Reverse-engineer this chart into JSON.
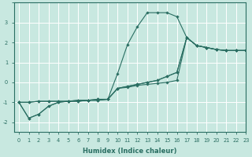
{
  "xlabel": "Humidex (Indice chaleur)",
  "ylabel": "",
  "bg_color": "#c8e8e0",
  "line_color": "#2a6e62",
  "grid_color": "#ffffff",
  "xlim": [
    -0.5,
    23
  ],
  "ylim": [
    -2.5,
    4.0
  ],
  "yticks": [
    -2,
    -1,
    0,
    1,
    2,
    3
  ],
  "xticks": [
    0,
    1,
    2,
    3,
    4,
    5,
    6,
    7,
    8,
    9,
    10,
    11,
    12,
    13,
    14,
    15,
    16,
    17,
    18,
    19,
    20,
    21,
    22,
    23
  ],
  "line1_x": [
    0,
    1,
    2,
    3,
    4,
    5,
    6,
    7,
    8,
    9,
    10,
    11,
    12,
    13,
    14,
    15,
    16,
    17,
    18,
    19,
    20,
    21,
    22,
    23
  ],
  "line1_y": [
    -1.0,
    -1.8,
    -1.6,
    -1.2,
    -1.0,
    -0.95,
    -0.95,
    -0.9,
    -0.9,
    -0.85,
    0.45,
    1.9,
    2.8,
    3.5,
    3.5,
    3.5,
    3.3,
    2.25,
    1.85,
    1.75,
    1.65,
    1.6,
    1.6,
    1.6
  ],
  "line2_x": [
    0,
    1,
    2,
    3,
    4,
    5,
    6,
    7,
    8,
    9,
    10,
    11,
    12,
    13,
    14,
    15,
    16,
    17,
    18,
    19,
    20,
    21,
    22,
    23
  ],
  "line2_y": [
    -1.0,
    -1.8,
    -1.6,
    -1.2,
    -1.0,
    -0.95,
    -0.95,
    -0.9,
    -0.9,
    -0.85,
    -0.3,
    -0.25,
    -0.15,
    -0.1,
    -0.05,
    0.0,
    0.1,
    2.25,
    1.85,
    1.75,
    1.65,
    1.6,
    1.6,
    1.6
  ],
  "line3_x": [
    0,
    1,
    2,
    3,
    4,
    5,
    6,
    7,
    8,
    9,
    10,
    11,
    12,
    13,
    14,
    15,
    16,
    17,
    18,
    19,
    20,
    21,
    22,
    23
  ],
  "line3_y": [
    -1.0,
    -1.0,
    -0.95,
    -0.95,
    -0.95,
    -0.95,
    -0.9,
    -0.9,
    -0.85,
    -0.85,
    -0.3,
    -0.2,
    -0.1,
    0.0,
    0.1,
    0.3,
    0.5,
    2.25,
    1.85,
    1.75,
    1.65,
    1.6,
    1.6,
    1.6
  ],
  "line4_x": [
    0,
    1,
    2,
    3,
    4,
    5,
    6,
    7,
    8,
    9,
    10,
    11,
    12,
    13,
    14,
    15,
    16,
    17,
    18,
    19,
    20,
    21,
    22,
    23
  ],
  "line4_y": [
    -1.0,
    -1.0,
    -0.95,
    -0.95,
    -0.95,
    -0.95,
    -0.9,
    -0.9,
    -0.85,
    -0.85,
    -0.3,
    -0.2,
    -0.1,
    0.0,
    0.1,
    0.3,
    0.5,
    2.25,
    1.85,
    1.75,
    1.65,
    1.6,
    1.6,
    1.6
  ]
}
